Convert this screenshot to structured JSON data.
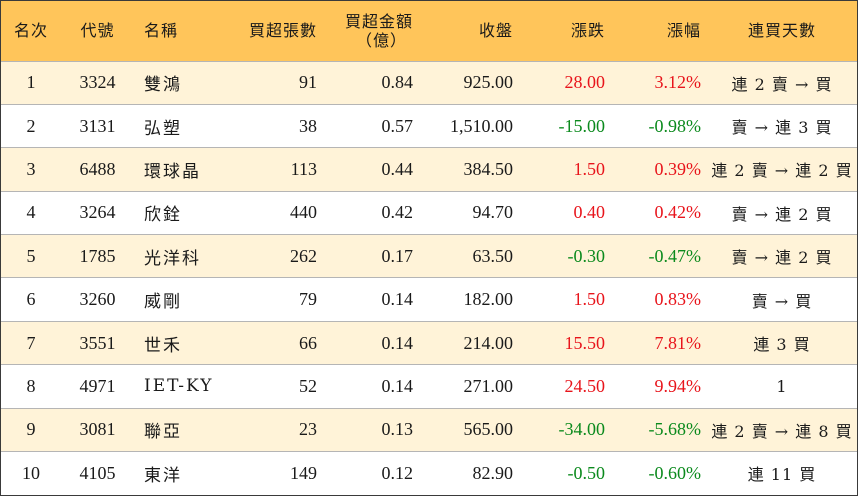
{
  "header": {
    "rank": "名次",
    "code": "代號",
    "name": "名稱",
    "net_buy_lots": "買超張數",
    "net_buy_amount_line1": "買超金額",
    "net_buy_amount_line2": "（億）",
    "close": "收盤",
    "change": "漲跌",
    "change_pct": "漲幅",
    "streak": "連買天數"
  },
  "colors": {
    "header_bg": "#ffc55a",
    "odd_row_bg": "#fff3d8",
    "even_row_bg": "#ffffff",
    "positive": "#e8141b",
    "negative": "#0b8a1d"
  },
  "rows": [
    {
      "rank": "1",
      "code": "3324",
      "name": "雙鴻",
      "lots": "91",
      "amount": "0.84",
      "close": "925.00",
      "change": "28.00",
      "pct": "3.12%",
      "streak": "連 2 賣 → 買",
      "dir": "up"
    },
    {
      "rank": "2",
      "code": "3131",
      "name": "弘塑",
      "lots": "38",
      "amount": "0.57",
      "close": "1,510.00",
      "change": "-15.00",
      "pct": "-0.98%",
      "streak": "賣 → 連 3 買",
      "dir": "down"
    },
    {
      "rank": "3",
      "code": "6488",
      "name": "環球晶",
      "lots": "113",
      "amount": "0.44",
      "close": "384.50",
      "change": "1.50",
      "pct": "0.39%",
      "streak": "連 2 賣 → 連 2 買",
      "dir": "up"
    },
    {
      "rank": "4",
      "code": "3264",
      "name": "欣銓",
      "lots": "440",
      "amount": "0.42",
      "close": "94.70",
      "change": "0.40",
      "pct": "0.42%",
      "streak": "賣 → 連 2 買",
      "dir": "up"
    },
    {
      "rank": "5",
      "code": "1785",
      "name": "光洋科",
      "lots": "262",
      "amount": "0.17",
      "close": "63.50",
      "change": "-0.30",
      "pct": "-0.47%",
      "streak": "賣 → 連 2 買",
      "dir": "down"
    },
    {
      "rank": "6",
      "code": "3260",
      "name": "威剛",
      "lots": "79",
      "amount": "0.14",
      "close": "182.00",
      "change": "1.50",
      "pct": "0.83%",
      "streak": "賣 → 買",
      "dir": "up"
    },
    {
      "rank": "7",
      "code": "3551",
      "name": "世禾",
      "lots": "66",
      "amount": "0.14",
      "close": "214.00",
      "change": "15.50",
      "pct": "7.81%",
      "streak": "連 3 買",
      "dir": "up"
    },
    {
      "rank": "8",
      "code": "4971",
      "name": "IET-KY",
      "lots": "52",
      "amount": "0.14",
      "close": "271.00",
      "change": "24.50",
      "pct": "9.94%",
      "streak": "1",
      "dir": "up"
    },
    {
      "rank": "9",
      "code": "3081",
      "name": "聯亞",
      "lots": "23",
      "amount": "0.13",
      "close": "565.00",
      "change": "-34.00",
      "pct": "-5.68%",
      "streak": "連 2 賣 → 連 8 買",
      "dir": "down"
    },
    {
      "rank": "10",
      "code": "4105",
      "name": "東洋",
      "lots": "149",
      "amount": "0.12",
      "close": "82.90",
      "change": "-0.50",
      "pct": "-0.60%",
      "streak": "連 11 買",
      "dir": "down"
    }
  ]
}
